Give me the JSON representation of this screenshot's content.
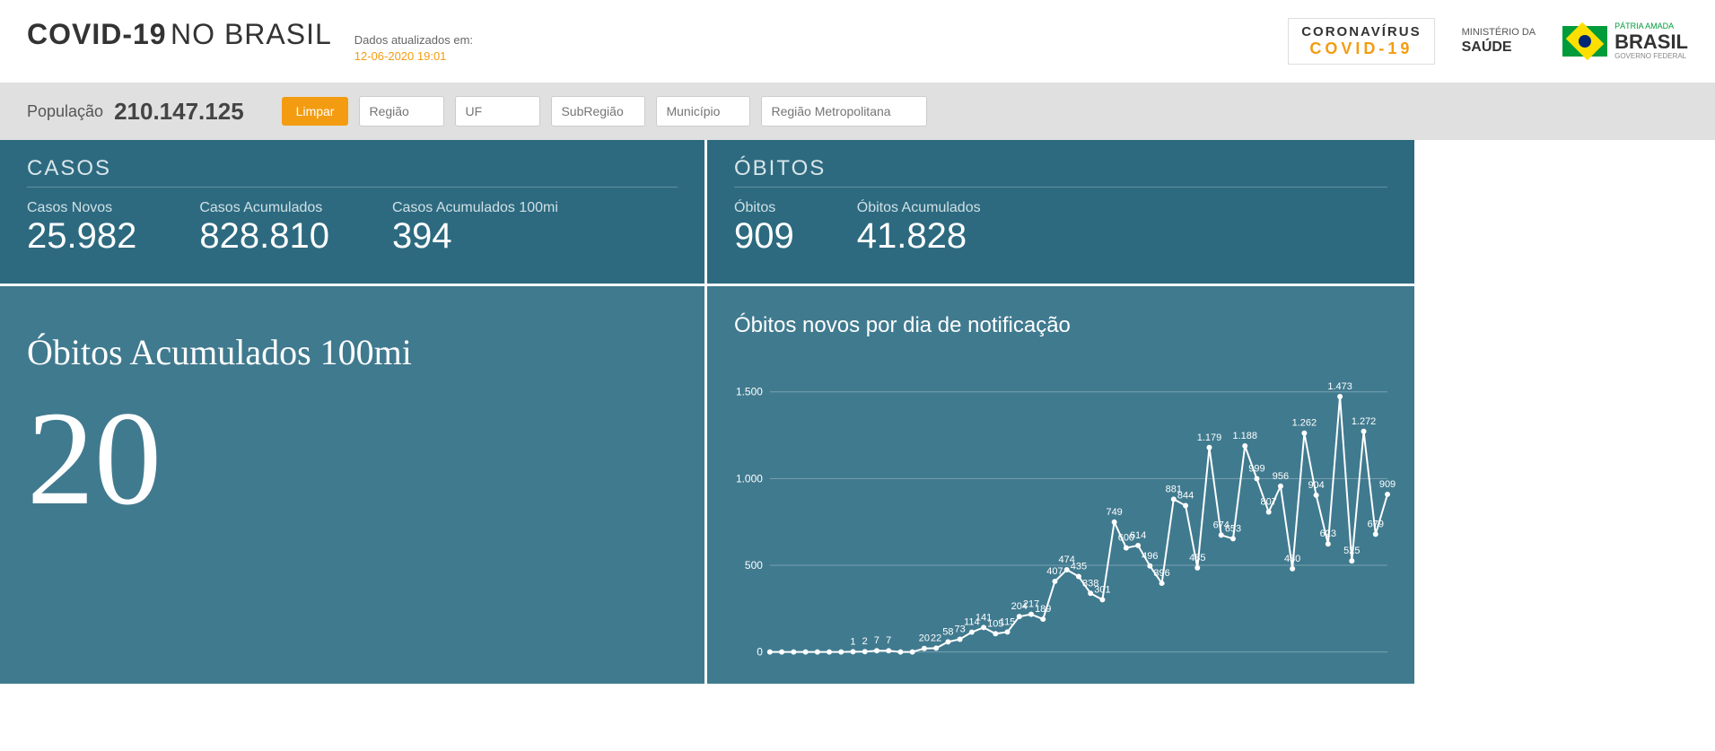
{
  "header": {
    "title_bold": "COVID-19",
    "title_light": "NO BRASIL",
    "updated_label": "Dados atualizados em:",
    "updated_value": "12-06-2020 19:01",
    "logo_corona_l1": "CORONAVÍRUS",
    "logo_corona_l2": "COVID-19",
    "logo_ms_l1": "MINISTÉRIO DA",
    "logo_ms_l2": "SAÚDE",
    "logo_br_l1": "PÁTRIA AMADA",
    "logo_br_l2": "BRASIL",
    "logo_br_l3": "GOVERNO FEDERAL"
  },
  "filter": {
    "pop_label": "População",
    "pop_value": "210.147.125",
    "btn_clear": "Limpar",
    "ph_regiao": "Região",
    "ph_uf": "UF",
    "ph_subregiao": "SubRegião",
    "ph_municipio": "Município",
    "ph_metro": "Região Metropolitana"
  },
  "casos": {
    "title": "CASOS",
    "novos_label": "Casos Novos",
    "novos_value": "25.982",
    "acum_label": "Casos Acumulados",
    "acum_value": "828.810",
    "acum100_label": "Casos Acumulados 100mi",
    "acum100_value": "394"
  },
  "obitos": {
    "title": "ÓBITOS",
    "novos_label": "Óbitos",
    "novos_value": "909",
    "acum_label": "Óbitos Acumulados",
    "acum_value": "41.828"
  },
  "big": {
    "label": "Óbitos Acumulados 100mi",
    "value": "20"
  },
  "chart": {
    "title": "Óbitos novos por dia de notificação",
    "type": "line",
    "ylim": [
      0,
      1600
    ],
    "yticks": [
      0,
      500,
      1000,
      1500
    ],
    "ytick_labels": [
      "0",
      "500",
      "1.000",
      "1.500"
    ],
    "background_color": "#407a8f",
    "line_color": "#ffffff",
    "marker_color": "#ffffff",
    "marker_radius": 3,
    "grid_color": "rgba(255,255,255,0.3)",
    "label_fontsize": 11,
    "values": [
      0,
      0,
      0,
      0,
      0,
      0,
      0,
      1,
      2,
      7,
      7,
      0,
      0,
      20,
      22,
      58,
      73,
      114,
      141,
      105,
      115,
      204,
      217,
      189,
      407,
      474,
      435,
      338,
      301,
      749,
      600,
      614,
      496,
      396,
      881,
      844,
      485,
      1179,
      674,
      653,
      1188,
      999,
      807,
      956,
      480,
      1262,
      904,
      623,
      1473,
      525,
      1272,
      679,
      909
    ],
    "value_labels": [
      "",
      "",
      "",
      "",
      "",
      "",
      "",
      "1",
      "2",
      "7",
      "7",
      "",
      "",
      "20",
      "22",
      "58",
      "73",
      "114",
      "141",
      "105",
      "115",
      "204",
      "217",
      "189",
      "407",
      "474",
      "435",
      "338",
      "301",
      "749",
      "600",
      "614",
      "496",
      "396",
      "881",
      "844",
      "485",
      "1.179",
      "674",
      "653",
      "1.188",
      "999",
      "807",
      "956",
      "480",
      "1.262",
      "904",
      "623",
      "1.473",
      "525",
      "1.272",
      "679",
      "909"
    ]
  }
}
